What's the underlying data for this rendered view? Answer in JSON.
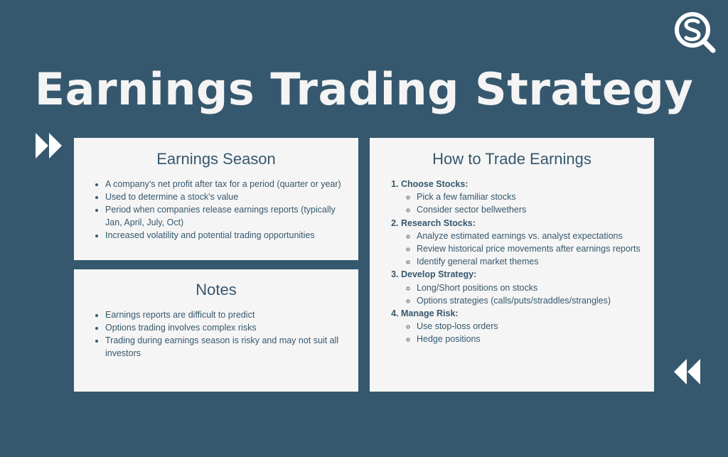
{
  "title": "Earnings Trading Strategy",
  "season": {
    "heading": "Earnings Season",
    "items": [
      "A company's net profit after tax for a period (quarter or year)",
      "Used to determine a stock's value",
      "Period when companies release earnings reports (typically Jan, April, July, Oct)",
      "Increased volatility and potential trading opportunities"
    ]
  },
  "notes": {
    "heading": "Notes",
    "items": [
      "Earnings reports are difficult to predict",
      "Options trading involves complex risks",
      "Trading during earnings season is risky and may not suit all investors"
    ]
  },
  "trade": {
    "heading": "How to Trade Earnings",
    "steps": [
      {
        "label": "Choose Stocks:",
        "items": [
          "Pick a few familiar stocks",
          "Consider sector bellwethers"
        ]
      },
      {
        "label": "Research Stocks:",
        "items": [
          "Analyze estimated earnings vs. analyst expectations",
          "Review historical price movements after earnings reports",
          "Identify general market themes"
        ]
      },
      {
        "label": "Develop Strategy:",
        "items": [
          "Long/Short positions on stocks",
          "Options strategies (calls/puts/straddles/strangles)"
        ]
      },
      {
        "label": "Manage Risk:",
        "items": [
          "Use stop-loss orders",
          "Hedge positions"
        ]
      }
    ]
  },
  "icons": {
    "logo": "sq-magnifier-logo",
    "forward": "fast-forward-icon",
    "rewind": "rewind-icon"
  },
  "colors": {
    "background": "#36586e",
    "card": "#f5f5f5",
    "text": "#36586e",
    "title": "#f4f4f4"
  }
}
